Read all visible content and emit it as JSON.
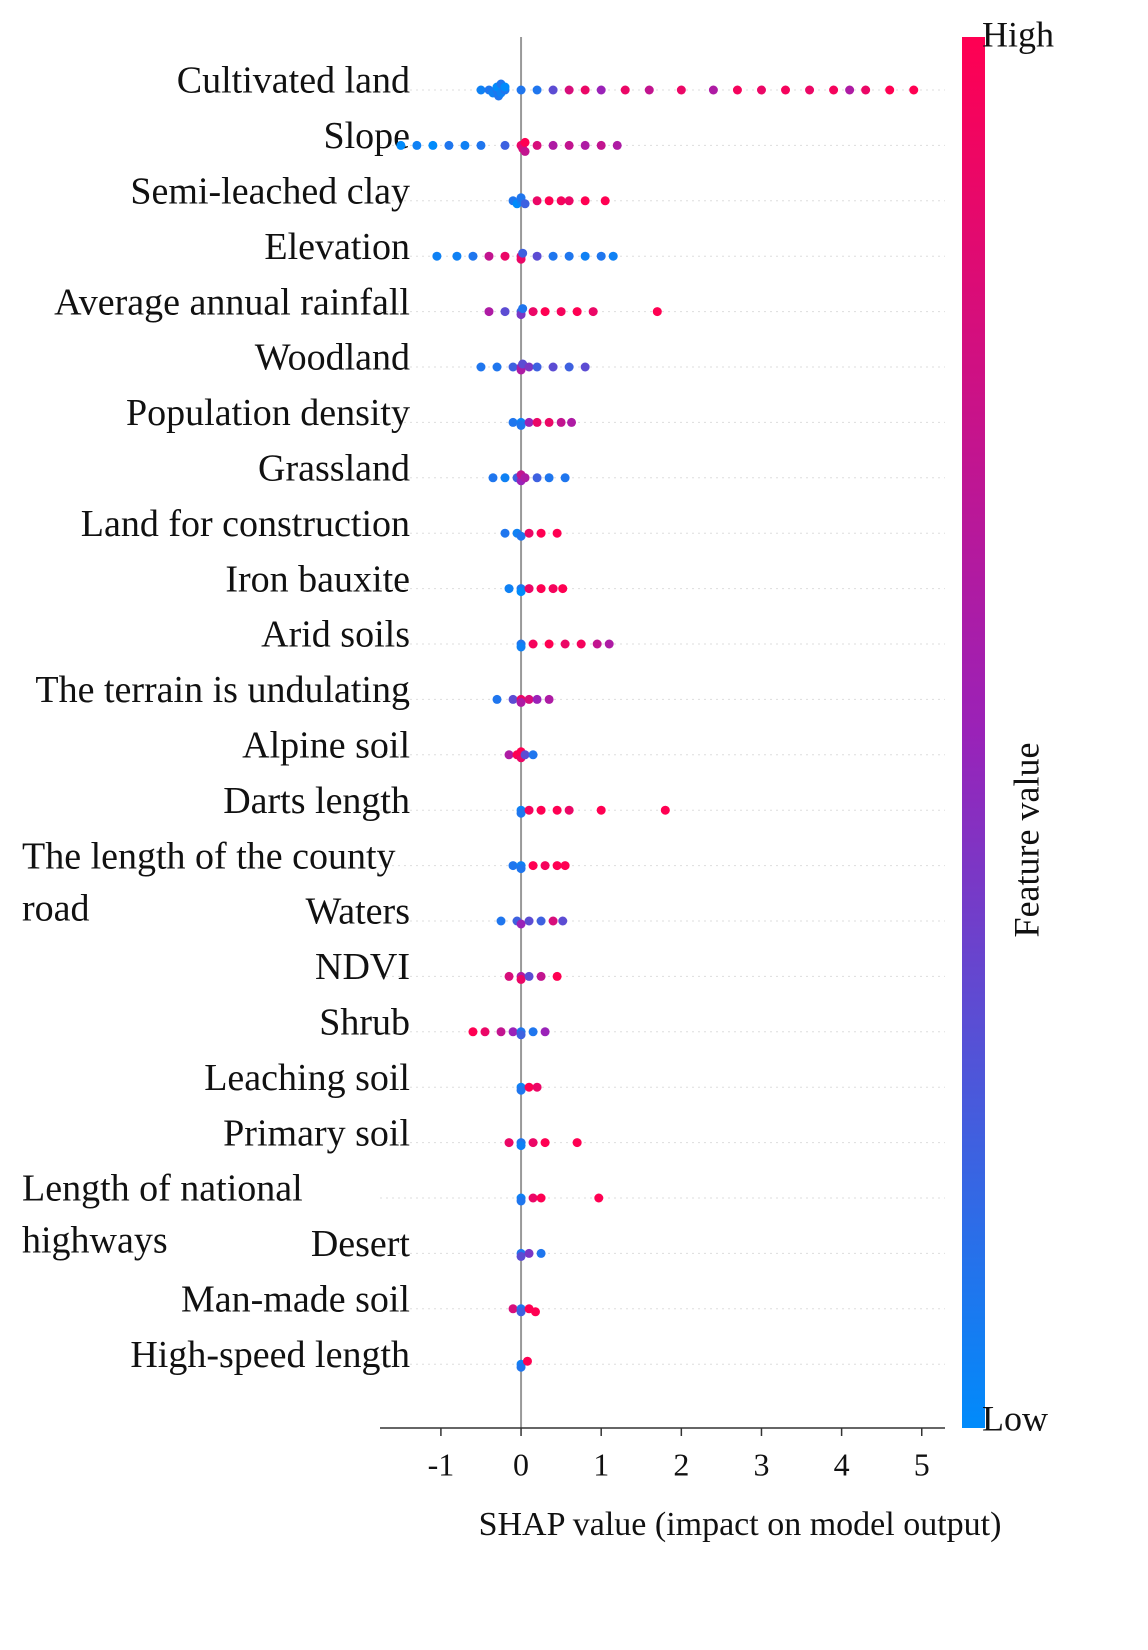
{
  "chart_data": {
    "type": "beeswarm",
    "xlabel": "SHAP value (impact on model output)",
    "xlim": [
      -1.76,
      5.29
    ],
    "xticks": [
      -1,
      0,
      1,
      2,
      3,
      4,
      5
    ],
    "colorbar": {
      "label": "Feature value",
      "high": "High",
      "low": "Low",
      "colors": [
        "#008bfb",
        "#9a22b8",
        "#ff0052"
      ]
    },
    "features": [
      {
        "label": "Cultivated land",
        "points": [
          [
            -0.5,
            0.05
          ],
          [
            -0.4,
            0.1
          ],
          [
            -0.35,
            0.05
          ],
          [
            -0.3,
            0.1
          ],
          [
            -0.3,
            0.0
          ],
          [
            -0.28,
            0.1
          ],
          [
            -0.25,
            0.05
          ],
          [
            -0.25,
            0.1
          ],
          [
            -0.2,
            0.1
          ],
          [
            -0.2,
            0.0
          ],
          [
            0,
            0.1
          ],
          [
            0.2,
            0.1
          ],
          [
            0.4,
            0.3
          ],
          [
            0.6,
            0.8
          ],
          [
            0.8,
            0.9
          ],
          [
            1.0,
            0.5
          ],
          [
            1.3,
            0.9
          ],
          [
            1.6,
            0.7
          ],
          [
            2.0,
            0.9
          ],
          [
            2.4,
            0.6
          ],
          [
            2.7,
            0.95
          ],
          [
            3.0,
            0.9
          ],
          [
            3.3,
            0.95
          ],
          [
            3.6,
            0.9
          ],
          [
            3.9,
            0.95
          ],
          [
            4.1,
            0.6
          ],
          [
            4.3,
            0.9
          ],
          [
            4.6,
            1
          ],
          [
            4.9,
            1
          ]
        ]
      },
      {
        "label": "Slope",
        "points": [
          [
            -1.5,
            0
          ],
          [
            -1.3,
            0.05
          ],
          [
            -1.1,
            0
          ],
          [
            -0.9,
            0.1
          ],
          [
            -0.7,
            0.05
          ],
          [
            -0.5,
            0.1
          ],
          [
            -0.2,
            0.2
          ],
          [
            0,
            0.9
          ],
          [
            0.02,
            0.8
          ],
          [
            0.05,
            1
          ],
          [
            0.05,
            0.7
          ],
          [
            0.2,
            0.8
          ],
          [
            0.4,
            0.6
          ],
          [
            0.6,
            0.7
          ],
          [
            0.8,
            0.6
          ],
          [
            1.0,
            0.7
          ],
          [
            1.2,
            0.6
          ]
        ]
      },
      {
        "label": "Semi-leached clay",
        "points": [
          [
            -0.1,
            0.1
          ],
          [
            -0.05,
            0
          ],
          [
            0,
            0.05
          ],
          [
            0,
            0.1
          ],
          [
            0.05,
            0.2
          ],
          [
            0.2,
            0.9
          ],
          [
            0.35,
            1
          ],
          [
            0.5,
            0.95
          ],
          [
            0.6,
            0.9
          ],
          [
            0.8,
            1
          ],
          [
            1.05,
            1
          ]
        ]
      },
      {
        "label": "Elevation",
        "points": [
          [
            -1.05,
            0.05
          ],
          [
            -0.8,
            0.05
          ],
          [
            -0.6,
            0.1
          ],
          [
            -0.4,
            0.7
          ],
          [
            -0.2,
            0.9
          ],
          [
            0,
            0.8
          ],
          [
            0,
            0.9
          ],
          [
            0.02,
            0.2
          ],
          [
            0.2,
            0.3
          ],
          [
            0.4,
            0.1
          ],
          [
            0.6,
            0.1
          ],
          [
            0.8,
            0.05
          ],
          [
            1.0,
            0.1
          ],
          [
            1.15,
            0.05
          ]
        ]
      },
      {
        "label": "Average annual rainfall",
        "points": [
          [
            -0.4,
            0.6
          ],
          [
            -0.2,
            0.3
          ],
          [
            0,
            0.2
          ],
          [
            0,
            0.4
          ],
          [
            0.02,
            0.1
          ],
          [
            0.15,
            0.9
          ],
          [
            0.3,
            1
          ],
          [
            0.5,
            0.95
          ],
          [
            0.7,
            1
          ],
          [
            0.9,
            0.9
          ],
          [
            1.7,
            1
          ]
        ]
      },
      {
        "label": "Woodland",
        "points": [
          [
            -0.5,
            0.1
          ],
          [
            -0.3,
            0.1
          ],
          [
            -0.1,
            0.2
          ],
          [
            0,
            0.5
          ],
          [
            0,
            0.6
          ],
          [
            0.02,
            0.3
          ],
          [
            0.1,
            0.4
          ],
          [
            0.2,
            0.2
          ],
          [
            0.4,
            0.3
          ],
          [
            0.6,
            0.2
          ],
          [
            0.8,
            0.3
          ]
        ]
      },
      {
        "label": "Population density",
        "points": [
          [
            -0.1,
            0.1
          ],
          [
            0,
            0.05
          ],
          [
            0,
            0.1
          ],
          [
            0.1,
            0.5
          ],
          [
            0.2,
            0.9
          ],
          [
            0.35,
            0.9
          ],
          [
            0.5,
            0.7
          ],
          [
            0.63,
            0.6
          ]
        ]
      },
      {
        "label": "Grassland",
        "points": [
          [
            -0.35,
            0.1
          ],
          [
            -0.2,
            0.05
          ],
          [
            -0.05,
            0.2
          ],
          [
            0,
            0.5
          ],
          [
            0,
            0.7
          ],
          [
            0.05,
            0.6
          ],
          [
            0.2,
            0.2
          ],
          [
            0.35,
            0.1
          ],
          [
            0.55,
            0.1
          ]
        ]
      },
      {
        "label": "Land for construction",
        "points": [
          [
            -0.2,
            0.1
          ],
          [
            -0.05,
            0.05
          ],
          [
            0,
            0.1
          ],
          [
            0.1,
            0.9
          ],
          [
            0.25,
            1
          ],
          [
            0.45,
            1
          ]
        ]
      },
      {
        "label": "Iron bauxite",
        "points": [
          [
            -0.15,
            0.05
          ],
          [
            0,
            0.1
          ],
          [
            0,
            0.0
          ],
          [
            0.1,
            0.9
          ],
          [
            0.25,
            1
          ],
          [
            0.4,
            0.95
          ],
          [
            0.52,
            1
          ]
        ]
      },
      {
        "label": "Arid soils",
        "points": [
          [
            0,
            0.1
          ],
          [
            0,
            0.05
          ],
          [
            0.15,
            0.95
          ],
          [
            0.35,
            1
          ],
          [
            0.55,
            0.9
          ],
          [
            0.75,
            0.95
          ],
          [
            0.95,
            0.7
          ],
          [
            1.1,
            0.6
          ]
        ]
      },
      {
        "label": "The terrain is undulating",
        "points": [
          [
            -0.3,
            0.1
          ],
          [
            -0.1,
            0.3
          ],
          [
            0,
            0.9
          ],
          [
            0,
            0.6
          ],
          [
            0.1,
            0.8
          ],
          [
            0.2,
            0.5
          ],
          [
            0.35,
            0.6
          ]
        ]
      },
      {
        "label": "Alpine soil",
        "points": [
          [
            -0.15,
            0.6
          ],
          [
            -0.05,
            1
          ],
          [
            0,
            0.9
          ],
          [
            0,
            1
          ],
          [
            0.05,
            0.3
          ],
          [
            0.15,
            0.1
          ]
        ]
      },
      {
        "label": "Darts length",
        "points": [
          [
            0,
            0.05
          ],
          [
            0,
            0.1
          ],
          [
            0.1,
            0.95
          ],
          [
            0.25,
            1
          ],
          [
            0.45,
            1
          ],
          [
            0.6,
            0.9
          ],
          [
            1.0,
            1
          ],
          [
            1.8,
            1
          ]
        ]
      },
      {
        "label": [
          "The length of the county",
          "road"
        ],
        "points": [
          [
            -0.1,
            0.1
          ],
          [
            0,
            0.05
          ],
          [
            0,
            0.1
          ],
          [
            0.15,
            1
          ],
          [
            0.3,
            0.95
          ],
          [
            0.45,
            1
          ],
          [
            0.55,
            1
          ]
        ]
      },
      {
        "label": "Waters",
        "points": [
          [
            -0.25,
            0.1
          ],
          [
            -0.05,
            0.2
          ],
          [
            0,
            0.5
          ],
          [
            0.1,
            0.3
          ],
          [
            0.25,
            0.2
          ],
          [
            0.4,
            0.8
          ],
          [
            0.52,
            0.3
          ]
        ]
      },
      {
        "label": "NDVI",
        "points": [
          [
            -0.15,
            0.8
          ],
          [
            0,
            0.6
          ],
          [
            0,
            0.9
          ],
          [
            0.1,
            0.3
          ],
          [
            0.25,
            0.7
          ],
          [
            0.45,
            1
          ]
        ]
      },
      {
        "label": "Shrub",
        "points": [
          [
            -0.6,
            1
          ],
          [
            -0.45,
            0.9
          ],
          [
            -0.25,
            0.7
          ],
          [
            -0.1,
            0.5
          ],
          [
            0,
            0.1
          ],
          [
            0,
            0.2
          ],
          [
            0.15,
            0.1
          ],
          [
            0.3,
            0.5
          ]
        ]
      },
      {
        "label": "Leaching soil",
        "points": [
          [
            0,
            0.05
          ],
          [
            0,
            0.1
          ],
          [
            0.1,
            1
          ],
          [
            0.2,
            0.9
          ]
        ]
      },
      {
        "label": "Primary soil",
        "points": [
          [
            -0.15,
            0.9
          ],
          [
            0,
            0.1
          ],
          [
            0,
            0.05
          ],
          [
            0.15,
            0.9
          ],
          [
            0.3,
            1
          ],
          [
            0.7,
            1
          ]
        ]
      },
      {
        "label": [
          "Length of national",
          "highways"
        ],
        "points": [
          [
            0,
            0.05
          ],
          [
            0,
            0.1
          ],
          [
            0.15,
            0.9
          ],
          [
            0.25,
            1
          ],
          [
            0.97,
            1
          ]
        ]
      },
      {
        "label": "Desert",
        "points": [
          [
            0,
            0.1
          ],
          [
            0,
            0.3
          ],
          [
            0.1,
            0.4
          ],
          [
            0.25,
            0.1
          ]
        ]
      },
      {
        "label": "Man-made soil",
        "points": [
          [
            -0.1,
            0.8
          ],
          [
            0,
            0.1
          ],
          [
            0,
            0.2
          ],
          [
            0.1,
            1
          ],
          [
            0.18,
            1
          ]
        ]
      },
      {
        "label": "High-speed length",
        "points": [
          [
            0,
            0.05
          ],
          [
            0,
            0.1
          ],
          [
            0.08,
            1
          ]
        ]
      }
    ]
  }
}
